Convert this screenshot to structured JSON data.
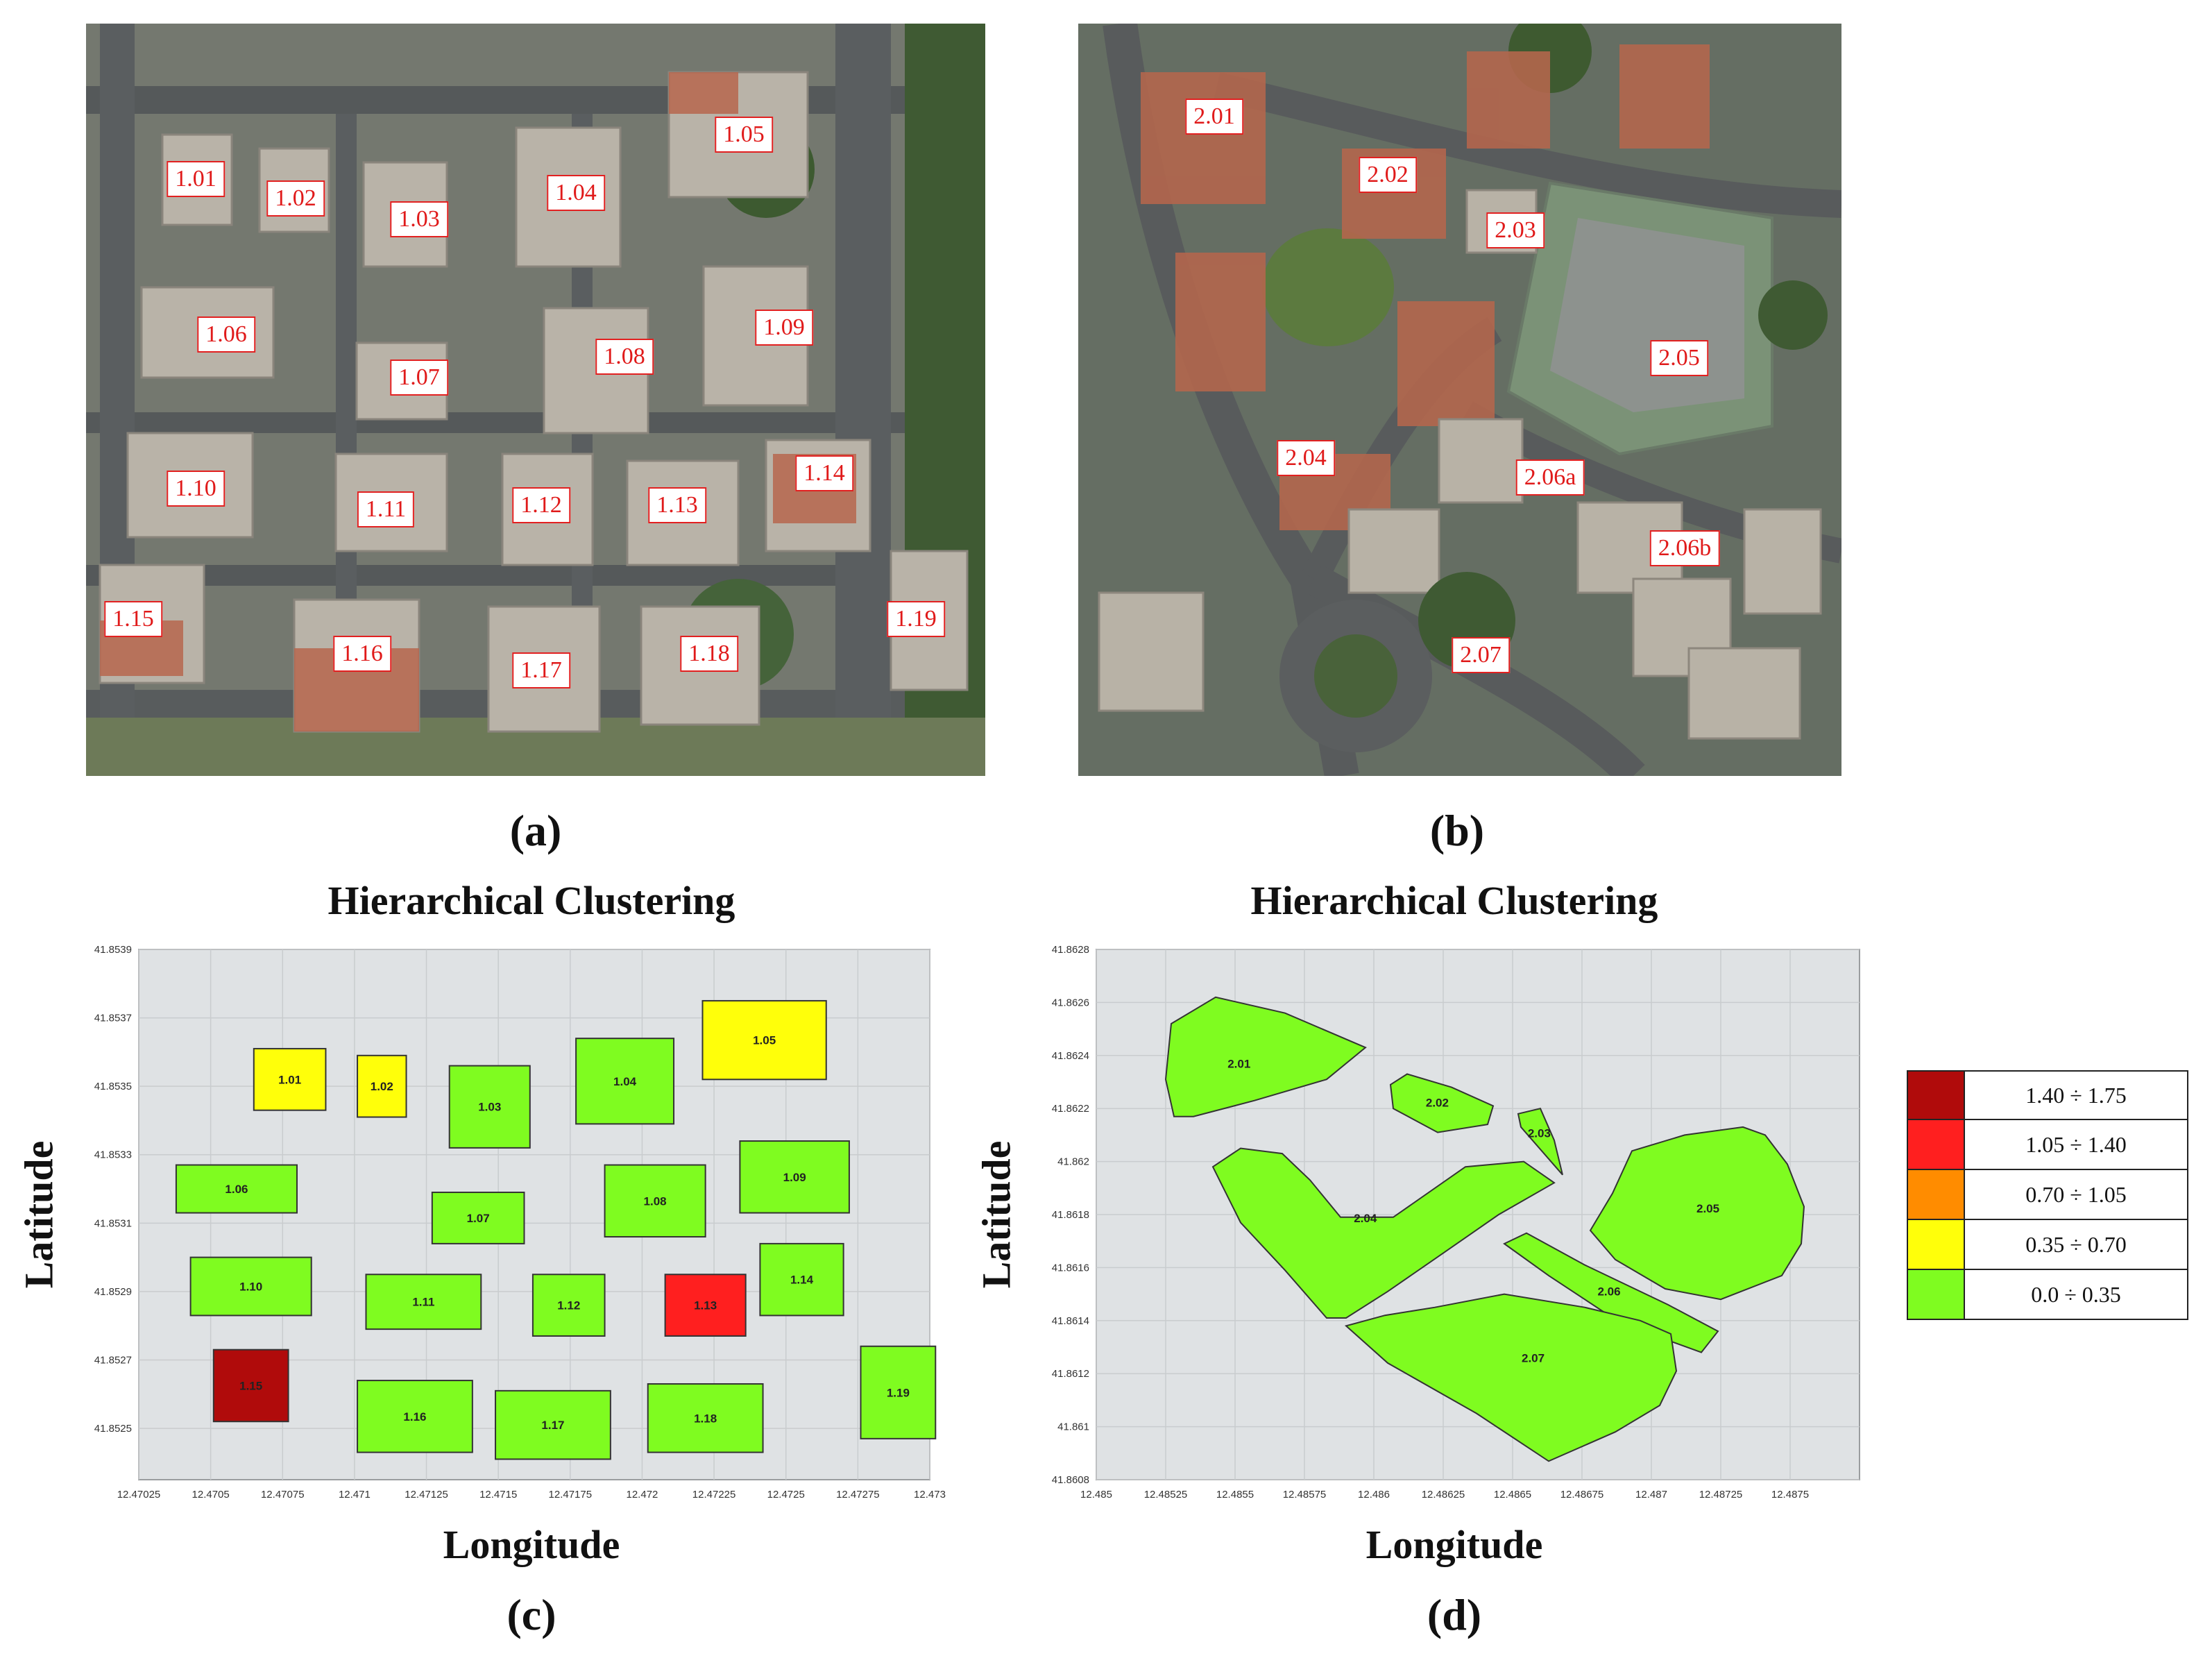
{
  "panel_a": {
    "caption": "(a)",
    "building_labels": [
      "1.01",
      "1.02",
      "1.03",
      "1.04",
      "1.05",
      "1.06",
      "1.07",
      "1.08",
      "1.09",
      "1.10",
      "1.11",
      "1.12",
      "1.13",
      "1.14",
      "1.15",
      "1.16",
      "1.17",
      "1.18",
      "1.19"
    ]
  },
  "panel_b": {
    "caption": "(b)",
    "building_labels": [
      "2.01",
      "2.02",
      "2.03",
      "2.05",
      "2.04",
      "2.06a",
      "2.06b",
      "2.07"
    ]
  },
  "chart_data": [
    {
      "panel": "(c)",
      "type": "heatmap",
      "title": "Hierarchical Clustering",
      "xlabel": "Longitude",
      "ylabel": "Latitude",
      "xlim": [
        12.47025,
        12.473
      ],
      "ylim": [
        41.85235,
        41.8539
      ],
      "xticks": [
        "12.47025",
        "12.4705",
        "12.47075",
        "12.471",
        "12.47125",
        "12.4715",
        "12.47175",
        "12.472",
        "12.47225",
        "12.4725",
        "12.47275",
        "12.473"
      ],
      "yticks": [
        "41.8525",
        "41.8527",
        "41.8529",
        "41.8531",
        "41.8533",
        "41.8535",
        "41.8537",
        "41.8539"
      ],
      "grid": true,
      "buildings": [
        {
          "label": "1.01",
          "lon": [
            12.47065,
            12.4709
          ],
          "lat": [
            41.85343,
            41.85361
          ],
          "class": "0.35 ÷ 0.70"
        },
        {
          "label": "1.02",
          "lon": [
            12.47101,
            12.47118
          ],
          "lat": [
            41.85341,
            41.85359
          ],
          "class": "0.35 ÷ 0.70"
        },
        {
          "label": "1.03",
          "lon": [
            12.47133,
            12.47161
          ],
          "lat": [
            41.85332,
            41.85356
          ],
          "class": "0.0 ÷ 0.35"
        },
        {
          "label": "1.04",
          "lon": [
            12.47177,
            12.47211
          ],
          "lat": [
            41.85339,
            41.85364
          ],
          "class": "0.0 ÷ 0.35"
        },
        {
          "label": "1.05",
          "lon": [
            12.47221,
            12.47264
          ],
          "lat": [
            41.85352,
            41.85375
          ],
          "class": "0.35 ÷ 0.70"
        },
        {
          "label": "1.06",
          "lon": [
            12.47038,
            12.4708
          ],
          "lat": [
            41.85313,
            41.85327
          ],
          "class": "0.0 ÷ 0.35"
        },
        {
          "label": "1.07",
          "lon": [
            12.47127,
            12.47159
          ],
          "lat": [
            41.85304,
            41.85319
          ],
          "class": "0.0 ÷ 0.35"
        },
        {
          "label": "1.08",
          "lon": [
            12.47187,
            12.47222
          ],
          "lat": [
            41.85306,
            41.85327
          ],
          "class": "0.0 ÷ 0.35"
        },
        {
          "label": "1.09",
          "lon": [
            12.47234,
            12.47272
          ],
          "lat": [
            41.85313,
            41.85334
          ],
          "class": "0.0 ÷ 0.35"
        },
        {
          "label": "1.10",
          "lon": [
            12.47043,
            12.47085
          ],
          "lat": [
            41.85283,
            41.853
          ],
          "class": "0.0 ÷ 0.35"
        },
        {
          "label": "1.11",
          "lon": [
            12.47104,
            12.47144
          ],
          "lat": [
            41.85279,
            41.85295
          ],
          "class": "0.0 ÷ 0.35"
        },
        {
          "label": "1.12",
          "lon": [
            12.47162,
            12.47187
          ],
          "lat": [
            41.85277,
            41.85295
          ],
          "class": "0.0 ÷ 0.35"
        },
        {
          "label": "1.13",
          "lon": [
            12.47208,
            12.47236
          ],
          "lat": [
            41.85277,
            41.85295
          ],
          "class": "1.05 ÷ 1.40"
        },
        {
          "label": "1.14",
          "lon": [
            12.47241,
            12.4727
          ],
          "lat": [
            41.85283,
            41.85304
          ],
          "class": "0.0 ÷ 0.35"
        },
        {
          "label": "1.15",
          "lon": [
            12.47051,
            12.47077
          ],
          "lat": [
            41.85252,
            41.85273
          ],
          "class": "1.40 ÷ 1.75"
        },
        {
          "label": "1.16",
          "lon": [
            12.47101,
            12.47141
          ],
          "lat": [
            41.85243,
            41.85264
          ],
          "class": "0.0 ÷ 0.35"
        },
        {
          "label": "1.17",
          "lon": [
            12.47149,
            12.47189
          ],
          "lat": [
            41.85241,
            41.85261
          ],
          "class": "0.0 ÷ 0.35"
        },
        {
          "label": "1.18",
          "lon": [
            12.47202,
            12.47242
          ],
          "lat": [
            41.85243,
            41.85263
          ],
          "class": "0.0 ÷ 0.35"
        },
        {
          "label": "1.19",
          "lon": [
            12.47276,
            12.47302
          ],
          "lat": [
            41.85247,
            41.85274
          ],
          "class": "0.0 ÷ 0.35"
        }
      ]
    },
    {
      "panel": "(d)",
      "type": "heatmap",
      "title": "Hierarchical Clustering",
      "xlabel": "Longitude",
      "ylabel": "Latitude",
      "xlim": [
        12.485,
        12.48775
      ],
      "ylim": [
        41.8608,
        41.8628
      ],
      "xticks": [
        "12.485",
        "12.48525",
        "12.4855",
        "12.48575",
        "12.486",
        "12.48625",
        "12.4865",
        "12.48675",
        "12.487",
        "12.48725",
        "12.4875"
      ],
      "yticks": [
        "41.8608",
        "41.861",
        "41.8612",
        "41.8614",
        "41.8616",
        "41.8618",
        "41.862",
        "41.8622",
        "41.8624",
        "41.8626",
        "41.8628"
      ],
      "grid": true,
      "zones": [
        {
          "label": "2.01",
          "class": "0.0 ÷ 0.35",
          "outline": [
            [
              12.48528,
              41.86217
            ],
            [
              12.48525,
              41.86231
            ],
            [
              12.48527,
              41.86252
            ],
            [
              12.48543,
              41.86262
            ],
            [
              12.48568,
              41.86256
            ],
            [
              12.48597,
              41.86243
            ],
            [
              12.48583,
              41.86231
            ],
            [
              12.48557,
              41.86223
            ],
            [
              12.48535,
              41.86217
            ]
          ]
        },
        {
          "label": "2.02",
          "class": "0.0 ÷ 0.35",
          "outline": [
            [
              12.48606,
              41.86229
            ],
            [
              12.48612,
              41.86233
            ],
            [
              12.48628,
              41.86228
            ],
            [
              12.48643,
              41.86221
            ],
            [
              12.48641,
              41.86214
            ],
            [
              12.48623,
              41.86211
            ],
            [
              12.48607,
              41.8622
            ]
          ]
        },
        {
          "label": "2.03",
          "class": "0.0 ÷ 0.35",
          "outline": [
            [
              12.48652,
              41.86218
            ],
            [
              12.4866,
              41.8622
            ],
            [
              12.48665,
              41.86208
            ],
            [
              12.48668,
              41.86195
            ],
            [
              12.48653,
              41.86213
            ]
          ]
        },
        {
          "label": "2.04",
          "class": "0.0 ÷ 0.35",
          "outline": [
            [
              12.48542,
              41.86198
            ],
            [
              12.48552,
              41.86205
            ],
            [
              12.48567,
              41.86203
            ],
            [
              12.48577,
              41.86193
            ],
            [
              12.48588,
              41.86179
            ],
            [
              12.48607,
              41.86179
            ],
            [
              12.48633,
              41.86198
            ],
            [
              12.48654,
              41.862
            ],
            [
              12.48665,
              41.86192
            ],
            [
              12.48645,
              41.8618
            ],
            [
              12.48623,
              41.86164
            ],
            [
              12.48605,
              41.86151
            ],
            [
              12.4859,
              41.86141
            ],
            [
              12.48583,
              41.86141
            ],
            [
              12.48568,
              41.86159
            ],
            [
              12.48552,
              41.86177
            ]
          ]
        },
        {
          "label": "2.05",
          "class": "0.0 ÷ 0.35",
          "outline": [
            [
              12.48678,
              41.86174
            ],
            [
              12.48687,
              41.86163
            ],
            [
              12.48705,
              41.86152
            ],
            [
              12.48725,
              41.86148
            ],
            [
              12.48747,
              41.86157
            ],
            [
              12.48754,
              41.86169
            ],
            [
              12.48755,
              41.86183
            ],
            [
              12.48749,
              41.86199
            ],
            [
              12.48741,
              41.8621
            ],
            [
              12.48733,
              41.86213
            ],
            [
              12.48712,
              41.8621
            ],
            [
              12.48693,
              41.86204
            ],
            [
              12.48686,
              41.86188
            ]
          ]
        },
        {
          "label": "2.06",
          "class": "0.0 ÷ 0.35",
          "outline": [
            [
              12.48647,
              41.86169
            ],
            [
              12.48655,
              41.86173
            ],
            [
              12.48676,
              41.86161
            ],
            [
              12.48706,
              41.86146
            ],
            [
              12.48724,
              41.86136
            ],
            [
              12.48718,
              41.86128
            ],
            [
              12.48689,
              41.86139
            ],
            [
              12.48663,
              41.86157
            ]
          ]
        },
        {
          "label": "2.07",
          "class": "0.0 ÷ 0.35",
          "outline": [
            [
              12.4859,
              41.86138
            ],
            [
              12.48605,
              41.86124
            ],
            [
              12.48637,
              41.86105
            ],
            [
              12.48663,
              41.86087
            ],
            [
              12.48687,
              41.86098
            ],
            [
              12.48703,
              41.86108
            ],
            [
              12.48709,
              41.86121
            ],
            [
              12.48707,
              41.86135
            ],
            [
              12.48696,
              41.8614
            ],
            [
              12.48676,
              41.86145
            ],
            [
              12.48647,
              41.8615
            ],
            [
              12.48622,
              41.86145
            ],
            [
              12.48604,
              41.86142
            ]
          ]
        }
      ]
    }
  ],
  "legend": {
    "items": [
      {
        "label": "1.40 ÷ 1.75",
        "color": "#b00b0b"
      },
      {
        "label": "1.05 ÷ 1.40",
        "color": "#ff1f1f"
      },
      {
        "label": "0.70 ÷ 1.05",
        "color": "#ff8c00"
      },
      {
        "label": "0.35 ÷ 0.70",
        "color": "#ffff0a"
      },
      {
        "label": "0.0 ÷ 0.35",
        "color": "#7ffc20"
      }
    ]
  },
  "colors": {
    "plot_background": "#dfe2e4",
    "grid": "#c9ccce",
    "label_border": "#e22020",
    "label_text": "#e01a1a"
  }
}
